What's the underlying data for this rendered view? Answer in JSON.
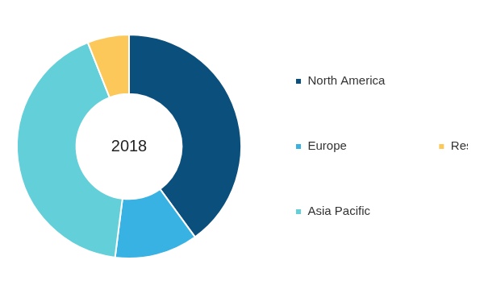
{
  "chart_data": {
    "type": "doughnut",
    "title": "2018",
    "categories": [
      "North America",
      "Europe",
      "Asia Pacific",
      "Rest of the World"
    ],
    "values": [
      40,
      12,
      42,
      6
    ],
    "colors": [
      "#0b4f7d",
      "#38b1e3",
      "#62cfd9",
      "#fcc85a"
    ],
    "legend": "right"
  }
}
